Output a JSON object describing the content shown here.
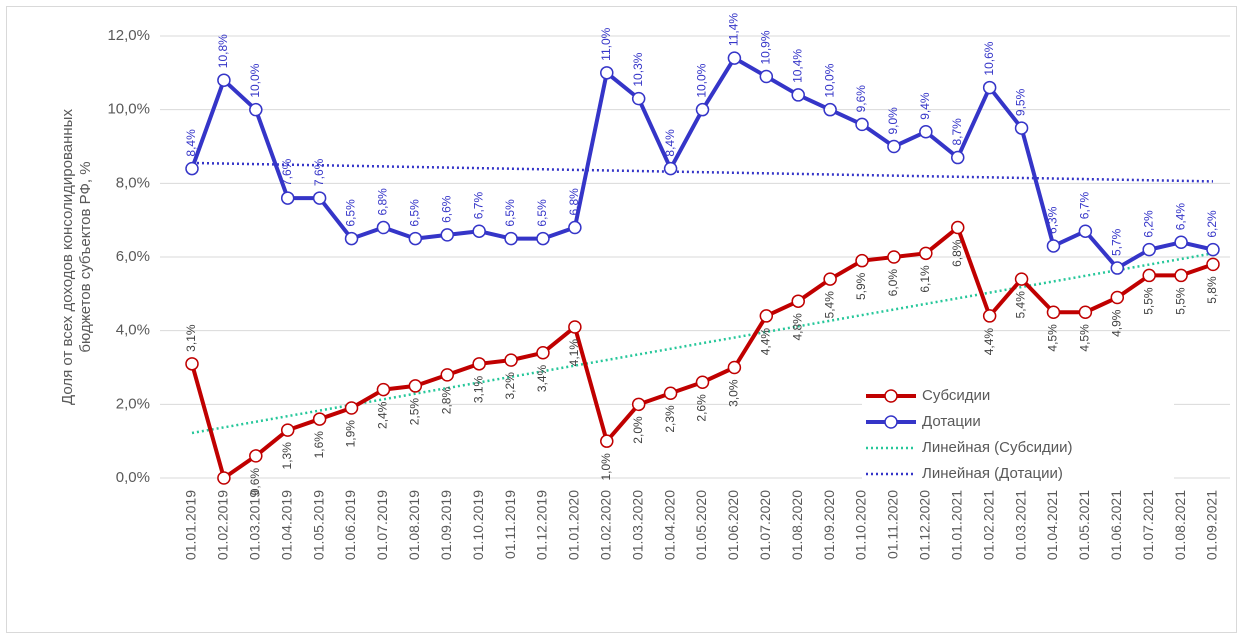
{
  "chart_data": {
    "type": "line",
    "ylabel": [
      "Доля от всех доходов консолидированных",
      "бюджетов субъектов РФ, %"
    ],
    "categories": [
      "01.01.2019",
      "01.02.2019",
      "01.03.2019",
      "01.04.2019",
      "01.05.2019",
      "01.06.2019",
      "01.07.2019",
      "01.08.2019",
      "01.09.2019",
      "01.10.2019",
      "01.11.2019",
      "01.12.2019",
      "01.01.2020",
      "01.02.2020",
      "01.03.2020",
      "01.04.2020",
      "01.05.2020",
      "01.06.2020",
      "01.07.2020",
      "01.08.2020",
      "01.09.2020",
      "01.10.2020",
      "01.11.2020",
      "01.12.2020",
      "01.01.2021",
      "01.02.2021",
      "01.03.2021",
      "01.04.2021",
      "01.05.2021",
      "01.06.2021",
      "01.07.2021",
      "01.08.2021",
      "01.09.2021"
    ],
    "series": [
      {
        "name": "Субсидии",
        "color": "#c00000",
        "label_side": "below",
        "values": [
          3.1,
          0,
          0.6,
          1.3,
          1.6,
          1.9,
          2.4,
          2.5,
          2.8,
          3.1,
          3.2,
          3.4,
          4.1,
          1.0,
          2.0,
          2.3,
          2.6,
          3.0,
          4.4,
          4.8,
          5.4,
          5.9,
          6.0,
          6.1,
          6.8,
          4.4,
          5.4,
          4.5,
          4.5,
          4.9,
          5.5,
          5.5,
          5.8
        ],
        "value_labels": [
          "3,1%",
          null,
          "0,6%",
          "1,3%",
          "1,6%",
          "1,9%",
          "2,4%",
          "2,5%",
          "2,8%",
          "3,1%",
          "3,2%",
          "3,4%",
          "4,1%",
          "1,0%",
          "2,0%",
          "2,3%",
          "2,6%",
          "3,0%",
          "4,4%",
          "4,8%",
          "5,4%",
          "5,9%",
          "6,0%",
          "6,1%",
          "6,8%",
          "4,4%",
          "5,4%",
          "4,5%",
          "4,5%",
          "4,9%",
          "5,5%",
          "5,5%",
          "5,8%"
        ],
        "trendline": {
          "name": "Линейная (Субсидии)",
          "color": "#26c79a"
        }
      },
      {
        "name": "Дотации",
        "color": "#3535c8",
        "label_side": "above",
        "values": [
          8.4,
          10.8,
          10.0,
          7.6,
          7.6,
          6.5,
          6.8,
          6.5,
          6.6,
          6.7,
          6.5,
          6.5,
          6.8,
          11.0,
          10.3,
          8.4,
          10.0,
          11.4,
          10.9,
          10.4,
          10.0,
          9.6,
          9.0,
          9.4,
          8.7,
          10.6,
          9.5,
          6.3,
          6.7,
          5.7,
          6.2,
          6.4,
          6.2
        ],
        "value_labels": [
          "8,4%",
          "10,8%",
          "10,0%",
          "7,6%",
          "7,6%",
          "6,5%",
          "6,8%",
          "6,5%",
          "6,6%",
          "6,7%",
          "6,5%",
          "6,5%",
          "6,8%",
          "11,0%",
          "10,3%",
          "8,4%",
          "10,0%",
          "11,4%",
          "10,9%",
          "10,4%",
          "10,0%",
          "9,6%",
          "9,0%",
          "9,4%",
          "8,7%",
          "10,6%",
          "9,5%",
          "6,3%",
          "6,7%",
          "5,7%",
          "6,2%",
          "6,4%",
          "6,2%"
        ],
        "trendline": {
          "name": "Линейная (Дотации)",
          "color": "#3535c8"
        }
      }
    ],
    "ylim": [
      0,
      12
    ],
    "yticks": [
      {
        "value": 0,
        "label": "0,0%"
      },
      {
        "value": 2,
        "label": "2,0%"
      },
      {
        "value": 4,
        "label": "4,0%"
      },
      {
        "value": 6,
        "label": "6,0%"
      },
      {
        "value": 8,
        "label": "8,0%"
      },
      {
        "value": 10,
        "label": "10,0%"
      },
      {
        "value": 12,
        "label": "12,0%"
      }
    ],
    "grid": true,
    "legend": "right"
  }
}
